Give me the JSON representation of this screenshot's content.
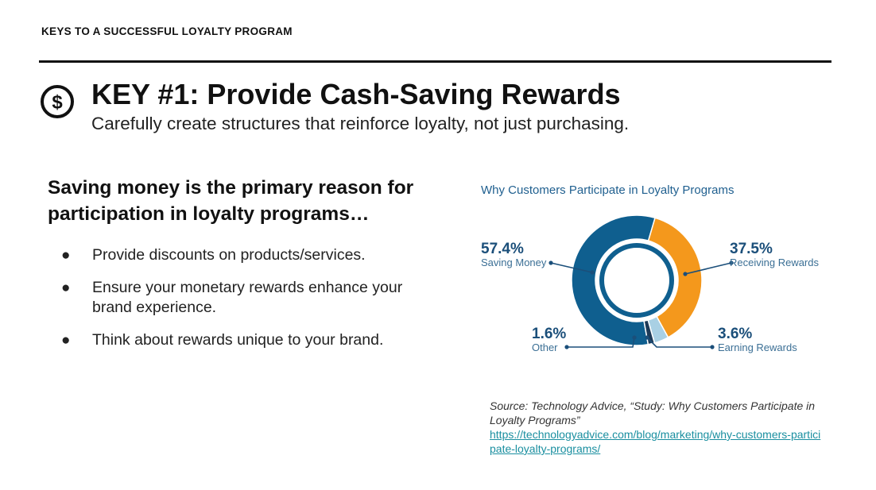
{
  "header": {
    "label": "KEYS TO A SUCCESSFUL LOYALTY PROGRAM"
  },
  "title": {
    "icon": "dollar-circle-icon",
    "icon_symbol": "$",
    "text": "KEY #1: Provide Cash-Saving Rewards",
    "subtitle": "Carefully create structures that reinforce loyalty, not just purchasing."
  },
  "left": {
    "lead": "Saving money is the primary reason for participation in loyalty programs…",
    "bullet_symbol": "●",
    "bullets": [
      "Provide discounts on products/services.",
      "Ensure your monetary rewards enhance your brand experience.",
      "Think about rewards unique to your brand."
    ]
  },
  "chart_data": {
    "type": "pie",
    "title": "Why Customers Participate in Loyalty Programs",
    "series": [
      {
        "name": "Saving Money",
        "value": 57.4,
        "label": "57.4%",
        "color": "#0f5f8f"
      },
      {
        "name": "Receiving Rewards",
        "value": 37.5,
        "label": "37.5%",
        "color": "#f4981c"
      },
      {
        "name": "Earning Rewards",
        "value": 3.6,
        "label": "3.6%",
        "color": "#a9d0e4"
      },
      {
        "name": "Other",
        "value": 1.6,
        "label": "1.6%",
        "color": "#1d3a57"
      }
    ],
    "legend": "none"
  },
  "source": {
    "text": "Source: Technology Advice, “Study: Why Customers Participate in Loyalty Programs”",
    "link": "https://technologyadvice.com/blog/marketing/why-customers-participate-loyalty-programs/"
  }
}
